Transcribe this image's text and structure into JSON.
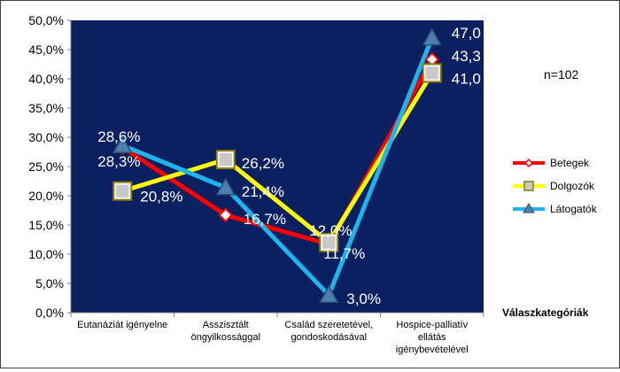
{
  "chart_data": {
    "type": "line",
    "categories": [
      [
        "Eutanáziát igényelne"
      ],
      [
        "Asszisztált",
        "öngyilkossággal"
      ],
      [
        "Család szeretetével,",
        "gondoskodásával"
      ],
      [
        "Hospice-palliatív",
        "ellátás",
        "igénybevételével"
      ]
    ],
    "series": [
      {
        "name": "Betegek",
        "color": "#ff0000",
        "marker": "diamond",
        "values": [
          28.3,
          16.7,
          11.7,
          43.3
        ],
        "labels": [
          "28,3%",
          "16,7%",
          "11,7%",
          "43,3"
        ]
      },
      {
        "name": "Dolgozók",
        "color": "#ffff00",
        "marker": "square",
        "values": [
          20.8,
          26.2,
          12.0,
          41.0
        ],
        "labels": [
          "20,8%",
          "26,2%",
          "12,0%",
          "41,0"
        ]
      },
      {
        "name": "Látogatók",
        "color": "#1eb4ee",
        "marker": "triangle",
        "values": [
          28.6,
          21.4,
          3.0,
          47.0
        ],
        "labels": [
          "28,6%",
          "21,4%",
          "3,0%",
          "47,0"
        ]
      }
    ],
    "ylim": [
      0,
      50
    ],
    "yticks": [
      "0,0%",
      "5,0%",
      "10,0%",
      "15,0%",
      "20,0%",
      "25,0%",
      "30,0%",
      "35,0%",
      "40,0%",
      "45,0%",
      "50,0%"
    ],
    "xlabel": "Válaszkategóriák",
    "annotation": "n=102",
    "plot_bg": "#0a2060",
    "grid": false,
    "legend_position": "right"
  }
}
